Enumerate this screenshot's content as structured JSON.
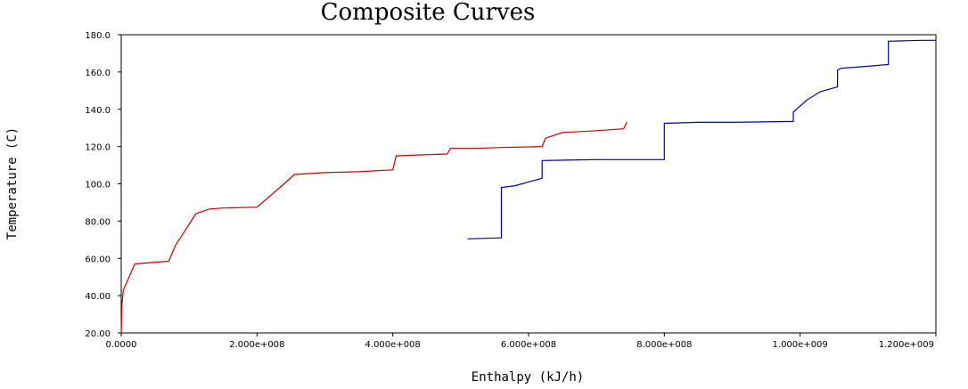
{
  "chart_data": {
    "type": "line",
    "title": "Composite Curves",
    "xlabel": "Enthalpy (kJ/h)",
    "ylabel": "Temperature (C)",
    "xlim": [
      0,
      1200000000
    ],
    "ylim": [
      20,
      180
    ],
    "xticks": [
      0,
      200000000,
      400000000,
      600000000,
      800000000,
      1000000000,
      1200000000
    ],
    "xtick_labels": [
      "0.0000",
      "2.000e+008",
      "4.000e+008",
      "6.000e+008",
      "8.000e+008",
      "1.000e+009",
      "1.200e+009"
    ],
    "yticks": [
      20,
      40,
      60,
      80,
      100,
      120,
      140,
      160,
      180
    ],
    "ytick_labels": [
      "20.00",
      "40.00",
      "60.00",
      "80.00",
      "100.0",
      "120.0",
      "140.0",
      "160.0",
      "180.0"
    ],
    "grid": false,
    "legend": "none",
    "series": [
      {
        "color": "#cc0000",
        "x": [
          0,
          1000000,
          3000000,
          8000000,
          20000000,
          70000000,
          80000000,
          110000000,
          130000000,
          150000000,
          200000000,
          240000000,
          255000000,
          300000000,
          350000000,
          400000000,
          405000000,
          440000000,
          480000000,
          485000000,
          520000000,
          560000000,
          620000000,
          625000000,
          650000000,
          700000000,
          740000000,
          745000000
        ],
        "y": [
          20,
          35,
          43,
          47,
          57,
          58.5,
          67,
          84,
          86.5,
          87,
          87.5,
          100,
          105,
          106,
          106.5,
          107.5,
          115,
          115.5,
          116,
          119,
          119,
          119.5,
          120,
          124.5,
          127.5,
          128.5,
          129.5,
          133
        ]
      },
      {
        "color": "#0000aa",
        "x": [
          510000000,
          560000000,
          560000000,
          580000000,
          600000000,
          620000000,
          620000000,
          700000000,
          800000000,
          800000000,
          850000000,
          900000000,
          990000000,
          990000000,
          1010000000,
          1030000000,
          1055000000,
          1055000000,
          1060000000,
          1080000000,
          1130000000,
          1130000000,
          1180000000,
          1200000000
        ],
        "y": [
          70.5,
          71,
          98,
          99,
          101,
          103,
          112.5,
          113,
          113,
          132.5,
          133,
          133,
          133.5,
          138.5,
          145,
          149.5,
          152,
          161,
          162,
          162.5,
          164,
          176.5,
          177,
          177
        ]
      }
    ]
  }
}
